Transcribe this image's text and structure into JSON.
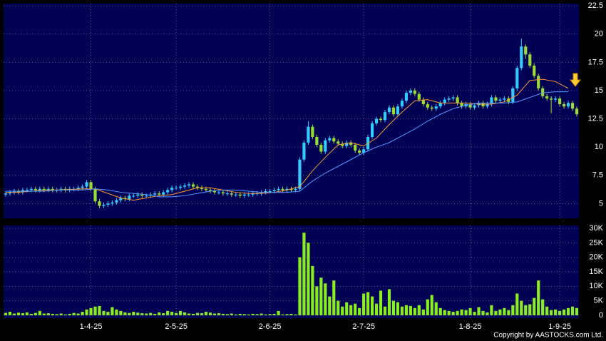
{
  "chart_data": [
    {
      "type": "candlestick",
      "xlim": [
        -0.5,
        134.5
      ],
      "ylim": [
        3.7,
        22.7
      ],
      "yticks": [
        5,
        7.5,
        10,
        12.5,
        15,
        17.5,
        20,
        22.5
      ],
      "grid": true,
      "up_color": "#33ccff",
      "down_color": "#99dd33",
      "open": [
        5.8,
        5.9,
        6.0,
        6.1,
        6.0,
        6.2,
        6.2,
        6.3,
        6.2,
        6.3,
        6.2,
        6.3,
        6.2,
        6.2,
        6.3,
        6.2,
        6.3,
        6.3,
        6.4,
        6.5,
        6.9,
        6.3,
        5.2,
        4.8,
        4.9,
        5.0,
        5.1,
        5.3,
        5.5,
        5.4,
        5.7,
        5.7,
        5.8,
        5.7,
        5.7,
        5.8,
        5.9,
        5.8,
        6.0,
        6.2,
        6.4,
        6.4,
        6.5,
        6.6,
        6.7,
        6.5,
        6.4,
        6.3,
        6.2,
        6.1,
        6.0,
        6.0,
        5.9,
        5.9,
        5.8,
        5.8,
        5.7,
        5.8,
        5.8,
        5.9,
        5.9,
        6.0,
        6.1,
        6.1,
        6.2,
        6.3,
        6.2,
        6.3,
        6.2,
        6.3,
        8.9,
        10.4,
        11.8,
        10.9,
        10.2,
        9.6,
        10.6,
        10.8,
        10.5,
        10.3,
        10.1,
        10.4,
        10.2,
        9.7,
        9.5,
        9.8,
        10.9,
        12.1,
        12.5,
        12.4,
        13.1,
        13.5,
        12.9,
        13.6,
        14.1,
        14.8,
        15.0,
        14.7,
        14.2,
        13.8,
        13.5,
        13.4,
        13.6,
        13.9,
        14.2,
        14.3,
        14.4,
        13.9,
        13.6,
        13.8,
        13.5,
        13.7,
        13.9,
        13.6,
        13.8,
        14.4,
        14.1,
        14.2,
        14.3,
        14.0,
        15.2,
        17.0,
        18.9,
        18.2,
        17.2,
        16.3,
        15.2,
        14.5,
        14.3,
        14.2,
        14.3,
        13.8,
        13.6,
        13.9,
        13.4
      ],
      "high": [
        6.1,
        6.2,
        6.3,
        6.3,
        6.4,
        6.4,
        6.5,
        6.5,
        6.5,
        6.5,
        6.5,
        6.5,
        6.4,
        6.5,
        6.5,
        6.5,
        6.5,
        6.6,
        6.7,
        7.1,
        7.1,
        6.5,
        5.4,
        5.1,
        5.2,
        5.3,
        5.5,
        5.7,
        5.7,
        5.9,
        5.9,
        6.0,
        6.0,
        5.9,
        6.0,
        6.1,
        6.1,
        6.2,
        6.4,
        6.6,
        6.6,
        6.7,
        6.8,
        6.9,
        6.9,
        6.7,
        6.6,
        6.5,
        6.4,
        6.3,
        6.2,
        6.2,
        6.1,
        6.1,
        6.0,
        6.0,
        6.0,
        6.0,
        6.1,
        6.1,
        6.2,
        6.3,
        6.3,
        6.4,
        6.5,
        6.5,
        6.5,
        6.5,
        6.5,
        9.1,
        10.6,
        12.3,
        12.0,
        11.1,
        10.4,
        10.8,
        11.0,
        11.0,
        10.7,
        10.5,
        10.6,
        10.6,
        10.4,
        9.9,
        10.0,
        11.1,
        12.3,
        12.7,
        12.7,
        13.3,
        13.7,
        13.7,
        13.8,
        14.3,
        15.0,
        15.2,
        15.2,
        14.9,
        14.4,
        14.0,
        13.7,
        13.8,
        14.1,
        14.4,
        14.5,
        14.6,
        14.6,
        14.1,
        14.0,
        14.0,
        13.9,
        14.1,
        14.1,
        14.0,
        14.6,
        14.6,
        14.4,
        14.5,
        14.5,
        15.4,
        17.2,
        19.6,
        19.1,
        18.4,
        17.4,
        16.5,
        15.4,
        14.7,
        14.5,
        14.5,
        14.5,
        14.0,
        14.1,
        14.1,
        13.6
      ],
      "low": [
        5.6,
        5.7,
        5.8,
        5.8,
        5.8,
        6.0,
        6.0,
        6.0,
        6.0,
        6.0,
        6.0,
        6.0,
        6.0,
        6.0,
        6.0,
        6.0,
        6.1,
        6.1,
        6.2,
        6.3,
        6.1,
        5.0,
        4.6,
        4.6,
        4.7,
        4.8,
        4.9,
        5.1,
        5.2,
        5.2,
        5.5,
        5.5,
        5.5,
        5.5,
        5.5,
        5.6,
        5.6,
        5.6,
        5.8,
        6.0,
        6.2,
        6.2,
        6.3,
        6.4,
        6.3,
        6.2,
        6.1,
        6.0,
        5.9,
        5.8,
        5.8,
        5.7,
        5.7,
        5.6,
        5.6,
        5.5,
        5.5,
        5.6,
        5.6,
        5.7,
        5.7,
        5.8,
        5.9,
        5.9,
        6.0,
        6.0,
        6.0,
        6.0,
        6.0,
        6.1,
        8.7,
        10.2,
        10.7,
        10.0,
        9.4,
        9.4,
        10.4,
        10.3,
        10.1,
        9.9,
        9.9,
        10.0,
        9.5,
        9.3,
        9.3,
        9.6,
        10.7,
        11.9,
        12.2,
        12.2,
        12.9,
        12.7,
        12.7,
        13.4,
        13.9,
        14.6,
        14.5,
        14.0,
        13.6,
        13.3,
        13.2,
        13.2,
        13.4,
        13.7,
        14.0,
        14.1,
        13.7,
        13.4,
        13.4,
        13.3,
        13.3,
        13.5,
        13.4,
        13.4,
        13.6,
        13.9,
        13.9,
        14.0,
        13.8,
        13.8,
        15.0,
        16.8,
        17.8,
        17.0,
        16.1,
        15.0,
        14.3,
        14.1,
        13.0,
        14.0,
        13.6,
        13.4,
        13.4,
        13.2,
        12.7
      ],
      "close": [
        5.9,
        6.0,
        6.1,
        6.0,
        6.2,
        6.2,
        6.3,
        6.2,
        6.3,
        6.2,
        6.3,
        6.2,
        6.2,
        6.3,
        6.2,
        6.3,
        6.3,
        6.4,
        6.5,
        6.9,
        6.3,
        5.2,
        4.8,
        4.9,
        5.0,
        5.1,
        5.3,
        5.5,
        5.4,
        5.7,
        5.7,
        5.8,
        5.7,
        5.7,
        5.8,
        5.9,
        5.8,
        6.0,
        6.2,
        6.4,
        6.4,
        6.5,
        6.6,
        6.7,
        6.5,
        6.4,
        6.3,
        6.2,
        6.1,
        6.0,
        6.0,
        5.9,
        5.9,
        5.8,
        5.8,
        5.7,
        5.8,
        5.8,
        5.9,
        5.9,
        6.0,
        6.1,
        6.1,
        6.2,
        6.3,
        6.2,
        6.3,
        6.2,
        6.3,
        8.9,
        10.4,
        11.8,
        10.9,
        10.2,
        9.6,
        10.6,
        10.8,
        10.5,
        10.3,
        10.1,
        10.4,
        10.2,
        9.7,
        9.5,
        9.8,
        10.9,
        12.1,
        12.5,
        12.4,
        13.1,
        13.5,
        12.9,
        13.6,
        14.1,
        14.8,
        15.0,
        14.7,
        14.2,
        13.8,
        13.5,
        13.4,
        13.6,
        13.9,
        14.2,
        14.3,
        14.4,
        13.9,
        13.6,
        13.8,
        13.5,
        13.7,
        13.9,
        13.6,
        13.8,
        14.4,
        14.1,
        14.2,
        14.3,
        14.0,
        15.2,
        17.0,
        18.9,
        18.2,
        17.2,
        16.3,
        15.2,
        14.5,
        14.3,
        14.2,
        14.3,
        13.8,
        13.6,
        13.9,
        13.4,
        12.9
      ],
      "lines": [
        {
          "color": "#ff9933",
          "x": [
            0,
            3,
            6,
            9,
            12,
            15,
            18,
            21,
            24,
            27,
            30,
            33,
            36,
            39,
            42,
            45,
            48,
            51,
            54,
            57,
            60,
            63,
            66,
            69,
            72,
            75,
            78,
            81,
            84,
            87,
            90,
            93,
            96,
            99,
            102,
            105,
            108,
            111,
            114,
            117,
            120,
            123,
            126,
            129,
            132
          ],
          "values": [
            6.0,
            6.0,
            6.1,
            6.2,
            6.2,
            6.25,
            6.3,
            6.3,
            5.9,
            5.5,
            5.3,
            5.5,
            5.7,
            5.8,
            6.1,
            6.4,
            6.4,
            6.2,
            6.0,
            5.9,
            5.9,
            6.0,
            6.2,
            6.5,
            7.9,
            9.1,
            10.2,
            10.4,
            10.1,
            10.8,
            12.0,
            13.1,
            14.1,
            14.2,
            13.9,
            13.9,
            13.9,
            13.8,
            13.8,
            14.0,
            14.6,
            15.9,
            16.0,
            15.8,
            15.2
          ]
        },
        {
          "color": "#5599ff",
          "x": [
            0,
            3,
            6,
            9,
            12,
            15,
            18,
            21,
            24,
            27,
            30,
            33,
            36,
            39,
            42,
            45,
            48,
            51,
            54,
            57,
            60,
            63,
            66,
            69,
            72,
            75,
            78,
            81,
            84,
            87,
            90,
            93,
            96,
            99,
            102,
            105,
            108,
            111,
            114,
            117,
            120,
            123,
            126,
            129,
            132
          ],
          "values": [
            6.1,
            6.1,
            6.1,
            6.1,
            6.2,
            6.2,
            6.2,
            6.3,
            6.2,
            6.0,
            5.9,
            5.8,
            5.6,
            5.6,
            5.7,
            5.9,
            6.1,
            6.2,
            6.2,
            6.1,
            6.0,
            6.0,
            6.0,
            6.1,
            7.0,
            7.7,
            8.3,
            8.9,
            9.5,
            10.0,
            10.4,
            11.0,
            11.6,
            12.3,
            12.9,
            13.4,
            13.7,
            13.9,
            13.9,
            13.9,
            14.0,
            14.4,
            14.8,
            14.9,
            14.9
          ]
        }
      ]
    },
    {
      "type": "bar",
      "xlim": [
        -0.5,
        134.5
      ],
      "ylim": [
        -1000,
        31000
      ],
      "grid": true,
      "color": "#88ee22",
      "xticks": [
        {
          "value": 20,
          "label": "1-4-25"
        },
        {
          "value": 40,
          "label": "2-5-25"
        },
        {
          "value": 62,
          "label": "2-6-25"
        },
        {
          "value": 84,
          "label": "2-7-25"
        },
        {
          "value": 109,
          "label": "1-8-25"
        },
        {
          "value": 130,
          "label": "1-9-25"
        }
      ],
      "yticks": [
        0,
        {
          "value": 5000,
          "label": "5K"
        },
        {
          "value": 10000,
          "label": "10K"
        },
        {
          "value": 15000,
          "label": "15K"
        },
        {
          "value": 20000,
          "label": "20K"
        },
        {
          "value": 25000,
          "label": "25K"
        },
        {
          "value": 30000,
          "label": "30K"
        }
      ],
      "values": [
        800,
        1200,
        600,
        900,
        700,
        1000,
        500,
        800,
        1500,
        600,
        700,
        500,
        400,
        600,
        300,
        500,
        800,
        600,
        1200,
        2000,
        2500,
        3000,
        3200,
        1500,
        1200,
        2800,
        2000,
        1500,
        1000,
        800,
        1200,
        900,
        700,
        600,
        800,
        500,
        1000,
        700,
        1500,
        1200,
        800,
        1500,
        1000,
        600,
        500,
        800,
        700,
        1200,
        900,
        600,
        700,
        500,
        400,
        600,
        300,
        500,
        400,
        300,
        500,
        400,
        600,
        300,
        400,
        500,
        1500,
        300,
        400,
        500,
        300,
        20000,
        28500,
        25000,
        17000,
        10000,
        13000,
        11000,
        6500,
        12000,
        5000,
        3000,
        4500,
        3500,
        4000,
        2500,
        7500,
        8000,
        6500,
        4000,
        8500,
        3000,
        9000,
        5000,
        4500,
        3000,
        3500,
        3200,
        2500,
        3500,
        2000,
        5500,
        7000,
        4500,
        2500,
        1800,
        1500,
        1200,
        1500,
        2000,
        1800,
        2500,
        1200,
        2800,
        1500,
        1000,
        3500,
        1500,
        2000,
        2500,
        1800,
        3500,
        7500,
        5000,
        3500,
        3800,
        6000,
        12000,
        5500,
        3000,
        1800,
        2000,
        1500,
        2000,
        2500,
        3000,
        2500
      ]
    }
  ],
  "footer": "Copyright by AASTOCKS.com Ltd."
}
